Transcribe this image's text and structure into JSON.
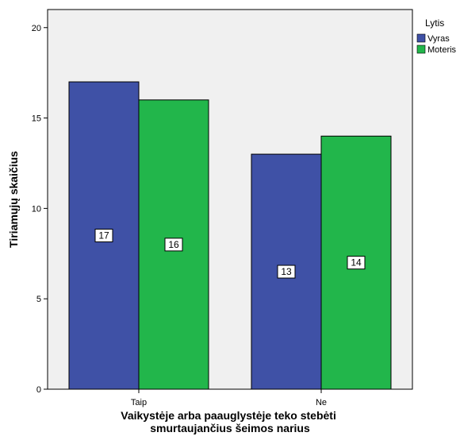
{
  "chart_data": {
    "type": "bar",
    "categories": [
      "Taip",
      "Ne"
    ],
    "series": [
      {
        "name": "Vyras",
        "values": [
          17,
          13
        ],
        "color": "#3f51a6"
      },
      {
        "name": "Moteris",
        "values": [
          16,
          14
        ],
        "color": "#22b64b"
      }
    ],
    "xlabel": [
      "Vaikystėje arba paauglystėje teko stebėti",
      "smurtaujančius šeimos narius"
    ],
    "ylabel": "Tiriamųjų skaičius",
    "ylim": [
      0,
      21
    ],
    "yticks": [
      0,
      5,
      10,
      15,
      20
    ],
    "legend": {
      "title": "Lytis",
      "position": "right"
    },
    "grid": false,
    "data_labels": true,
    "plot_background": "#f0f0f0"
  }
}
